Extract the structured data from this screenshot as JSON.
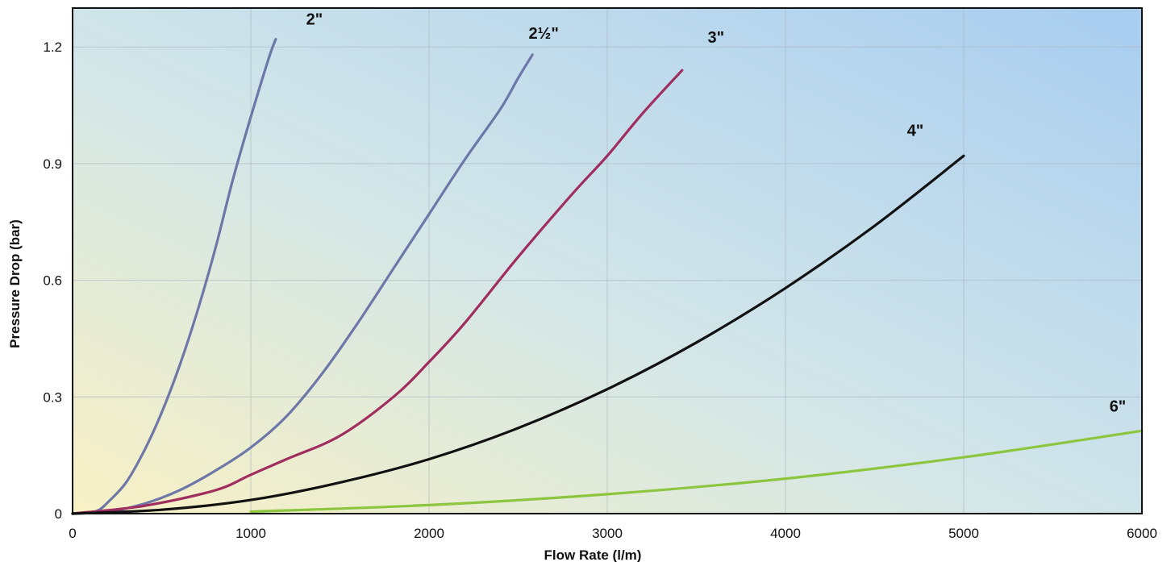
{
  "chart_data": {
    "type": "line",
    "title": "",
    "xlabel": "Flow Rate (l/m)",
    "ylabel": "Pressure Drop (bar)",
    "xlim": [
      0,
      6000
    ],
    "ylim": [
      0,
      1.3
    ],
    "xticks": [
      0,
      1000,
      2000,
      3000,
      4000,
      5000,
      6000
    ],
    "yticks": [
      0,
      0.3,
      0.6,
      0.9,
      1.2
    ],
    "xtick_labels": [
      "0",
      "1000",
      "2000",
      "3000",
      "4000",
      "5000",
      "6000"
    ],
    "ytick_labels": [
      "0",
      "0.3",
      "0.6",
      "0.9",
      "1.2"
    ],
    "grid": true,
    "legend": "none",
    "background": [
      "#f8f1c4",
      "#a8cdf0"
    ],
    "series": [
      {
        "name": "2\"",
        "color": "#6e78a8",
        "x": [
          0,
          100,
          150,
          200,
          300,
          400,
          500,
          600,
          700,
          800,
          900,
          1000,
          1100,
          1140
        ],
        "y": [
          0,
          0.003,
          0.01,
          0.03,
          0.08,
          0.16,
          0.26,
          0.38,
          0.52,
          0.68,
          0.86,
          1.02,
          1.17,
          1.22
        ]
      },
      {
        "name": "2½\"",
        "color": "#6e78a8",
        "x": [
          0,
          200,
          400,
          600,
          800,
          1000,
          1200,
          1400,
          1600,
          1800,
          2000,
          2200,
          2400,
          2500,
          2580
        ],
        "y": [
          0,
          0.005,
          0.025,
          0.06,
          0.11,
          0.17,
          0.25,
          0.36,
          0.49,
          0.63,
          0.77,
          0.91,
          1.04,
          1.12,
          1.18
        ]
      },
      {
        "name": "3\"",
        "color": "#a02d5e",
        "x": [
          0,
          400,
          800,
          1000,
          1200,
          1500,
          1800,
          2000,
          2200,
          2500,
          2800,
          3000,
          3200,
          3420
        ],
        "y": [
          0,
          0.02,
          0.06,
          0.1,
          0.14,
          0.2,
          0.3,
          0.39,
          0.49,
          0.66,
          0.82,
          0.92,
          1.03,
          1.14
        ]
      },
      {
        "name": "4\"",
        "color": "#111111",
        "x": [
          0,
          500,
          1000,
          1500,
          2000,
          2500,
          3000,
          3500,
          4000,
          4500,
          5000
        ],
        "y": [
          0,
          0.01,
          0.035,
          0.08,
          0.14,
          0.22,
          0.32,
          0.44,
          0.58,
          0.74,
          0.92
        ]
      },
      {
        "name": "6\"",
        "color": "#8cc63f",
        "x": [
          1000,
          2000,
          3000,
          4000,
          5000,
          6000
        ],
        "y": [
          0.005,
          0.022,
          0.05,
          0.09,
          0.145,
          0.213
        ]
      }
    ],
    "series_label_positions": [
      "top",
      "top",
      "top",
      "top",
      "top"
    ]
  }
}
